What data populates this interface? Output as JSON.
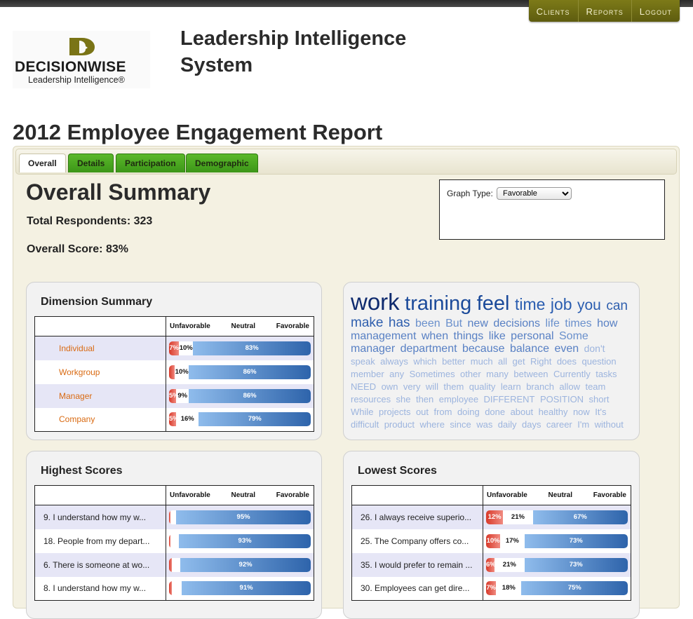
{
  "nav": {
    "items": [
      "Clients",
      "Reports",
      "Logout"
    ]
  },
  "logo": {
    "brand": "DECISIONWISE",
    "tagline": "Leadership Intelligence®"
  },
  "system_title": "Leadership Intelligence System",
  "report_title": "2012 Employee Engagement Report",
  "tabs": [
    "Overall",
    "Details",
    "Participation",
    "Demographic"
  ],
  "summary": {
    "heading": "Overall Summary",
    "respondents": "Total Respondents: 323",
    "score": "Overall Score: 83%"
  },
  "graph_type": {
    "label": "Graph Type:",
    "selected": "Favorable"
  },
  "columns": [
    "Unfavorable",
    "Neutral",
    "Favorable"
  ],
  "dimension_summary": {
    "title": "Dimension Summary",
    "rows": [
      {
        "label": "Individual",
        "u": 7,
        "n": 10,
        "f": 83
      },
      {
        "label": "Workgroup",
        "u": 4,
        "n": 10,
        "f": 86
      },
      {
        "label": "Manager",
        "u": 5,
        "n": 9,
        "f": 86
      },
      {
        "label": "Company",
        "u": 5,
        "n": 16,
        "f": 79
      }
    ]
  },
  "highest_scores": {
    "title": "Highest Scores",
    "rows": [
      {
        "label": "9. I understand how my w...",
        "u": 1,
        "n": 4,
        "f": 95
      },
      {
        "label": "18. People from my depart...",
        "u": 1,
        "n": 6,
        "f": 93
      },
      {
        "label": "6. There is someone at wo...",
        "u": 2,
        "n": 6,
        "f": 92
      },
      {
        "label": "8. I understand how my w...",
        "u": 2,
        "n": 7,
        "f": 91
      }
    ]
  },
  "lowest_scores": {
    "title": "Lowest Scores",
    "rows": [
      {
        "label": "26. I always receive superio...",
        "u": 12,
        "n": 21,
        "f": 67
      },
      {
        "label": "25. The Company offers co...",
        "u": 10,
        "n": 17,
        "f": 73
      },
      {
        "label": "35. I would prefer to remain ...",
        "u": 6,
        "n": 21,
        "f": 73
      },
      {
        "label": "30. Employees can get dire...",
        "u": 7,
        "n": 18,
        "f": 75
      }
    ]
  },
  "word_cloud": [
    {
      "w": "work",
      "s": 33,
      "c": "#0e2a6e"
    },
    {
      "w": "training",
      "s": 29,
      "c": "#1b4a9a"
    },
    {
      "w": "feel",
      "s": 29,
      "c": "#1b4a9a"
    },
    {
      "w": "time",
      "s": 23,
      "c": "#2a5db0"
    },
    {
      "w": "job",
      "s": 23,
      "c": "#2a5db0"
    },
    {
      "w": "you",
      "s": 21,
      "c": "#2a5db0"
    },
    {
      "w": "can",
      "s": 19,
      "c": "#2f5fae"
    },
    {
      "w": "make",
      "s": 19,
      "c": "#2f5fae"
    },
    {
      "w": "has",
      "s": 19,
      "c": "#2f5fae"
    },
    {
      "w": "been",
      "s": 16,
      "c": "#6a90cc"
    },
    {
      "w": "But",
      "s": 16,
      "c": "#6a90cc"
    },
    {
      "w": "new",
      "s": 16,
      "c": "#5880c4"
    },
    {
      "w": "decisions",
      "s": 16,
      "c": "#5880c4"
    },
    {
      "w": "life",
      "s": 16,
      "c": "#6a90cc"
    },
    {
      "w": "times",
      "s": 16,
      "c": "#6a90cc"
    },
    {
      "w": "how",
      "s": 16,
      "c": "#5880c4"
    },
    {
      "w": "management",
      "s": 16,
      "c": "#5880c4"
    },
    {
      "w": "when",
      "s": 16,
      "c": "#5880c4"
    },
    {
      "w": "things",
      "s": 16,
      "c": "#5880c4"
    },
    {
      "w": "like",
      "s": 16,
      "c": "#5880c4"
    },
    {
      "w": "personal",
      "s": 16,
      "c": "#5880c4"
    },
    {
      "w": "Some",
      "s": 16,
      "c": "#6a90cc"
    },
    {
      "w": "manager",
      "s": 16,
      "c": "#5880c4"
    },
    {
      "w": "department",
      "s": 16,
      "c": "#5880c4"
    },
    {
      "w": "because",
      "s": 16,
      "c": "#5880c4"
    },
    {
      "w": "balance",
      "s": 16,
      "c": "#5880c4"
    },
    {
      "w": "even",
      "s": 16,
      "c": "#5880c4"
    },
    {
      "w": "don't",
      "s": 14,
      "c": "#9cb4de"
    },
    {
      "w": "speak",
      "s": 13,
      "c": "#9cb4de"
    },
    {
      "w": "always",
      "s": 13,
      "c": "#9cb4de"
    },
    {
      "w": "which",
      "s": 13,
      "c": "#9cb4de"
    },
    {
      "w": "better",
      "s": 13,
      "c": "#9cb4de"
    },
    {
      "w": "much",
      "s": 13,
      "c": "#9cb4de"
    },
    {
      "w": "all",
      "s": 13,
      "c": "#9cb4de"
    },
    {
      "w": "get",
      "s": 13,
      "c": "#9cb4de"
    },
    {
      "w": "Right",
      "s": 13,
      "c": "#9cb4de"
    },
    {
      "w": "does",
      "s": 13,
      "c": "#9cb4de"
    },
    {
      "w": "question",
      "s": 13,
      "c": "#9cb4de"
    },
    {
      "w": "member",
      "s": 13,
      "c": "#9cb4de"
    },
    {
      "w": "any",
      "s": 13,
      "c": "#9cb4de"
    },
    {
      "w": "Sometimes",
      "s": 13,
      "c": "#9cb4de"
    },
    {
      "w": "other",
      "s": 13,
      "c": "#9cb4de"
    },
    {
      "w": "many",
      "s": 13,
      "c": "#9cb4de"
    },
    {
      "w": "between",
      "s": 13,
      "c": "#9cb4de"
    },
    {
      "w": "Currently",
      "s": 13,
      "c": "#9cb4de"
    },
    {
      "w": "tasks",
      "s": 13,
      "c": "#9cb4de"
    },
    {
      "w": "NEED",
      "s": 13,
      "c": "#9cb4de"
    },
    {
      "w": "own",
      "s": 13,
      "c": "#9cb4de"
    },
    {
      "w": "very",
      "s": 13,
      "c": "#9cb4de"
    },
    {
      "w": "will",
      "s": 13,
      "c": "#9cb4de"
    },
    {
      "w": "them",
      "s": 13,
      "c": "#9cb4de"
    },
    {
      "w": "quality",
      "s": 13,
      "c": "#9cb4de"
    },
    {
      "w": "learn",
      "s": 13,
      "c": "#9cb4de"
    },
    {
      "w": "branch",
      "s": 13,
      "c": "#9cb4de"
    },
    {
      "w": "allow",
      "s": 13,
      "c": "#9cb4de"
    },
    {
      "w": "team",
      "s": 13,
      "c": "#9cb4de"
    },
    {
      "w": "resources",
      "s": 13,
      "c": "#9cb4de"
    },
    {
      "w": "she",
      "s": 13,
      "c": "#9cb4de"
    },
    {
      "w": "then",
      "s": 13,
      "c": "#9cb4de"
    },
    {
      "w": "employee",
      "s": 13,
      "c": "#9cb4de"
    },
    {
      "w": "DIFFERENT",
      "s": 13,
      "c": "#9cb4de"
    },
    {
      "w": "POSITION",
      "s": 13,
      "c": "#9cb4de"
    },
    {
      "w": "short",
      "s": 13,
      "c": "#9cb4de"
    },
    {
      "w": "While",
      "s": 13,
      "c": "#9cb4de"
    },
    {
      "w": "projects",
      "s": 13,
      "c": "#9cb4de"
    },
    {
      "w": "out",
      "s": 13,
      "c": "#9cb4de"
    },
    {
      "w": "from",
      "s": 13,
      "c": "#9cb4de"
    },
    {
      "w": "doing",
      "s": 13,
      "c": "#9cb4de"
    },
    {
      "w": "done",
      "s": 13,
      "c": "#9cb4de"
    },
    {
      "w": "about",
      "s": 13,
      "c": "#9cb4de"
    },
    {
      "w": "healthy",
      "s": 13,
      "c": "#9cb4de"
    },
    {
      "w": "now",
      "s": 13,
      "c": "#9cb4de"
    },
    {
      "w": "It's",
      "s": 13,
      "c": "#9cb4de"
    },
    {
      "w": "difficult",
      "s": 13,
      "c": "#9cb4de"
    },
    {
      "w": "product",
      "s": 13,
      "c": "#9cb4de"
    },
    {
      "w": "where",
      "s": 13,
      "c": "#9cb4de"
    },
    {
      "w": "since",
      "s": 13,
      "c": "#9cb4de"
    },
    {
      "w": "was",
      "s": 13,
      "c": "#9cb4de"
    },
    {
      "w": "daily",
      "s": 13,
      "c": "#9cb4de"
    },
    {
      "w": "days",
      "s": 13,
      "c": "#9cb4de"
    },
    {
      "w": "career",
      "s": 13,
      "c": "#9cb4de"
    },
    {
      "w": "I'm",
      "s": 13,
      "c": "#9cb4de"
    },
    {
      "w": "without",
      "s": 13,
      "c": "#9cb4de"
    }
  ]
}
